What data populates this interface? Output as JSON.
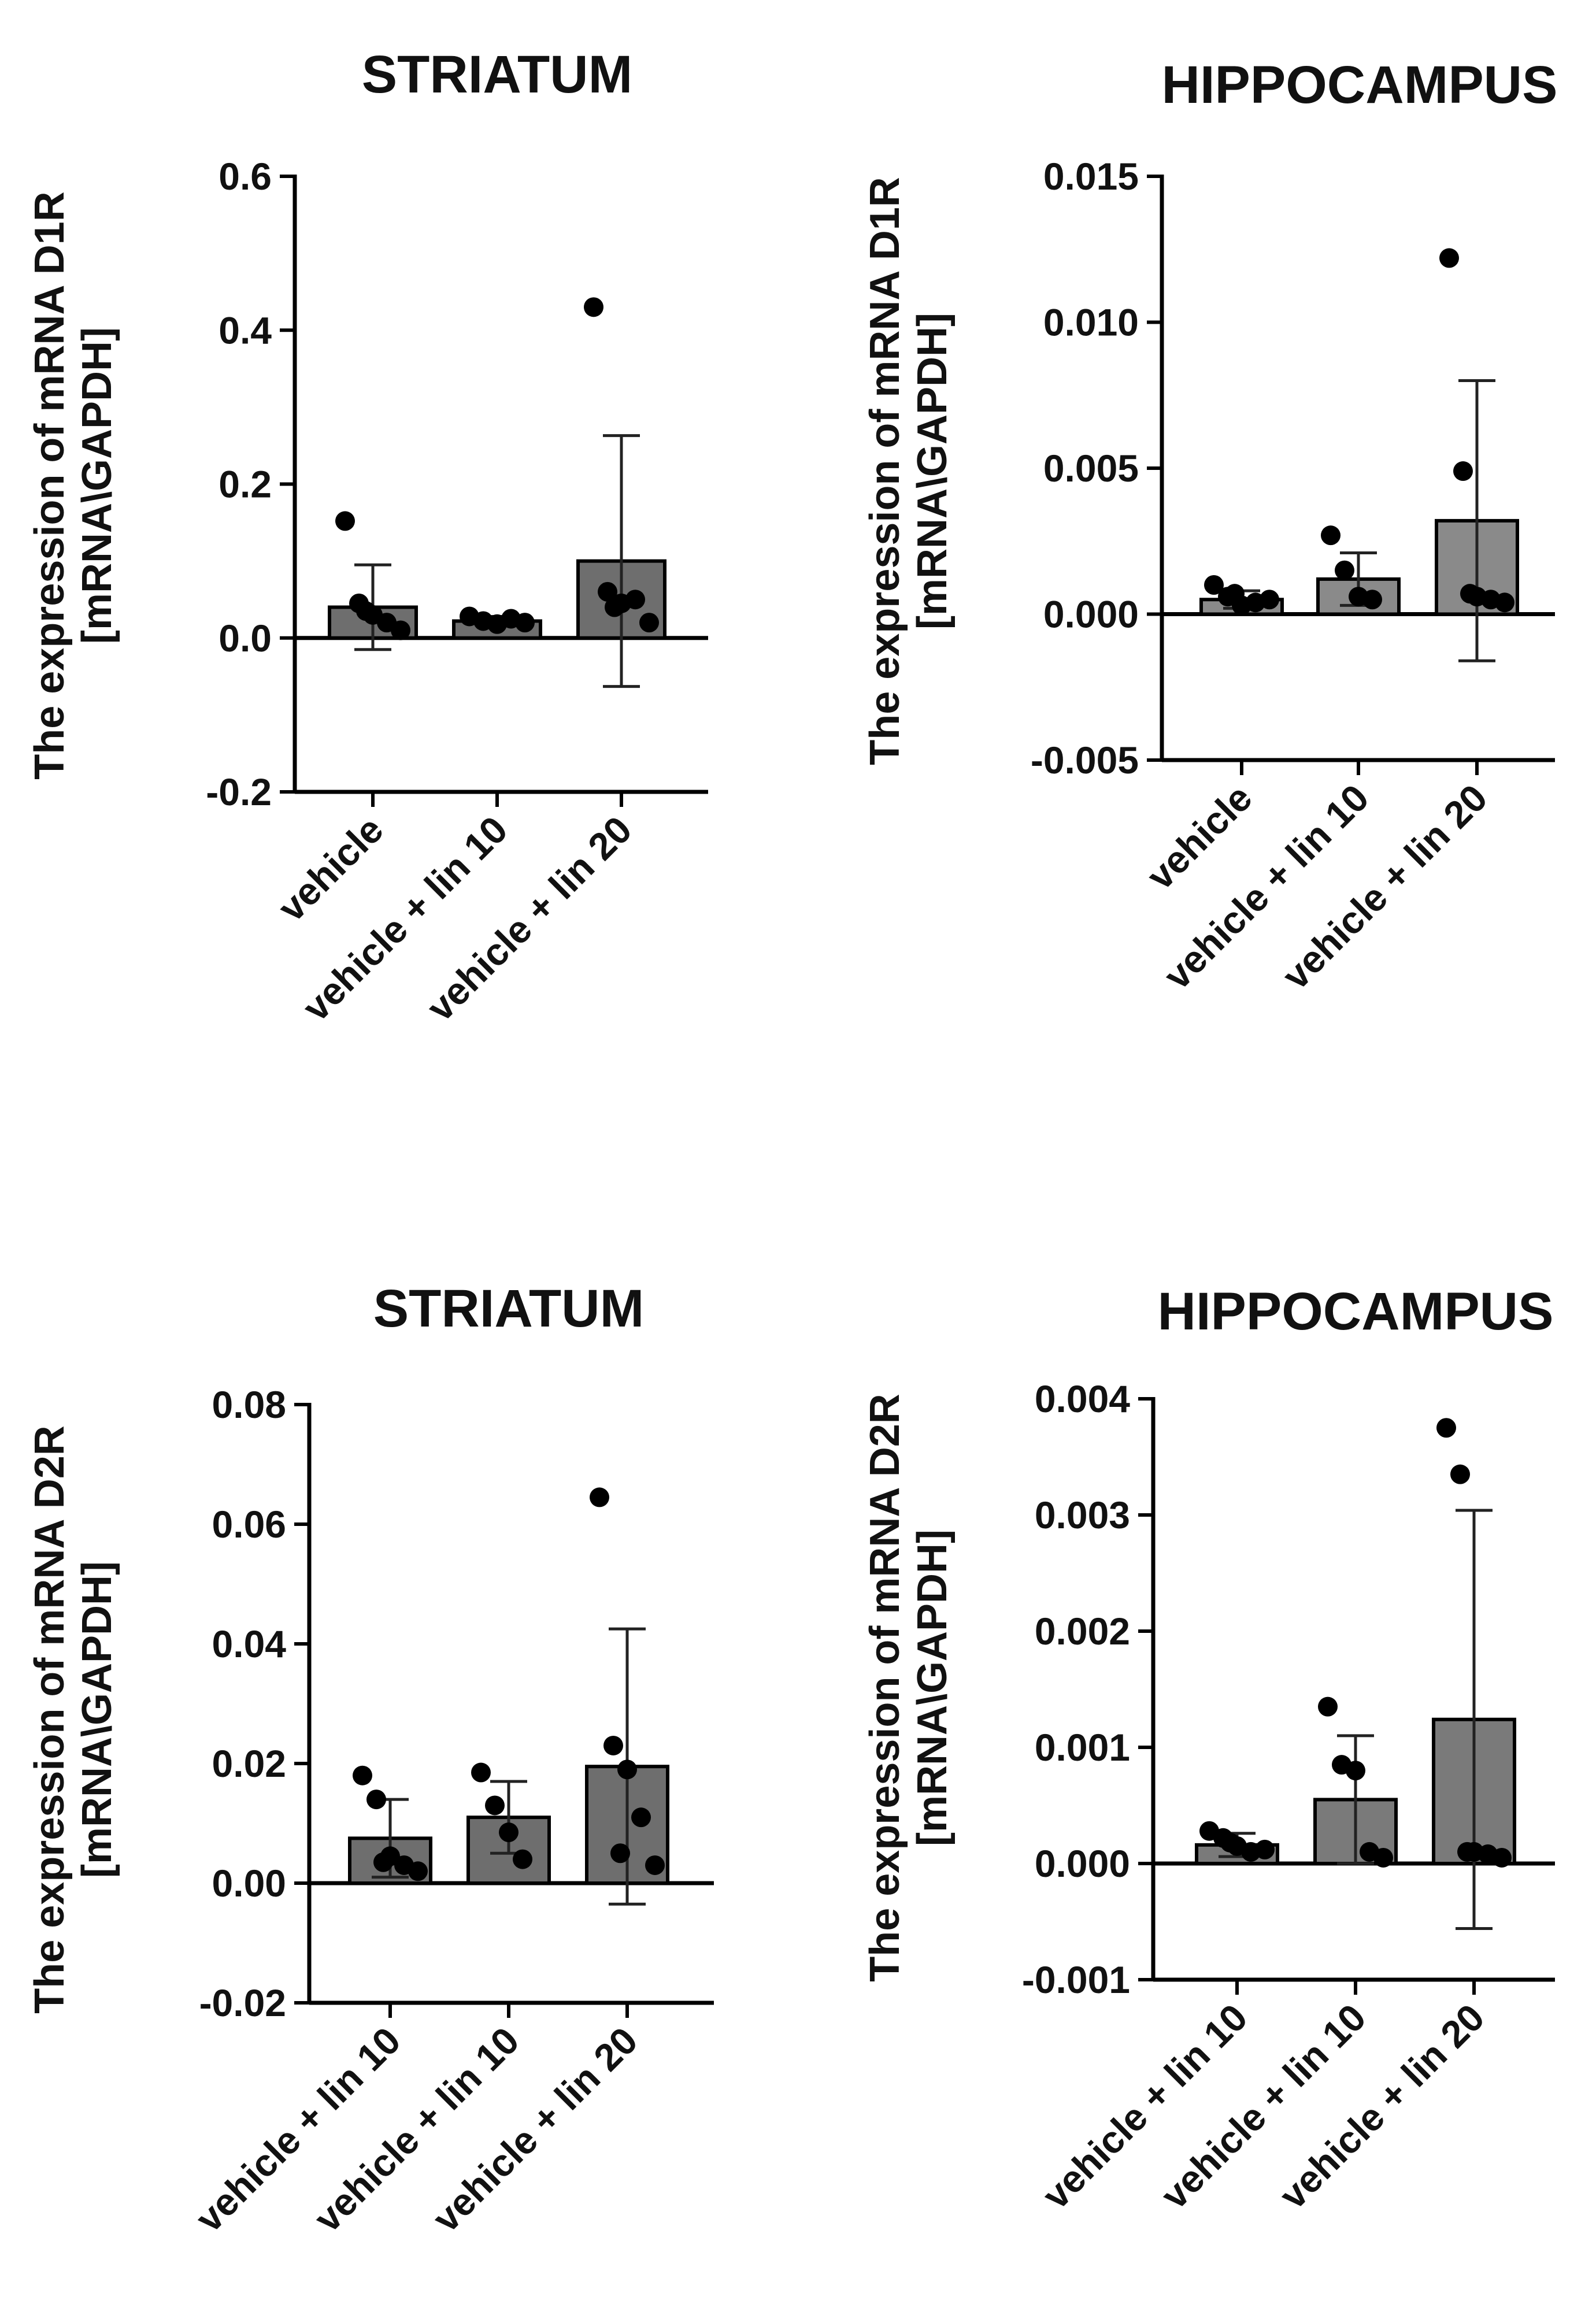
{
  "chart_data": [
    {
      "type": "bar",
      "title": "STRIATUM",
      "ylabel": [
        "The expression of mRNA D1R",
        "[mRNA\\GAPDH]"
      ],
      "ylim": [
        -0.2,
        0.6
      ],
      "yticks": [
        "0.6",
        "0.4",
        "0.2",
        "0.0",
        "-0.2"
      ],
      "ytick_values": [
        0.6,
        0.4,
        0.2,
        0.0,
        -0.2
      ],
      "categories": [
        "vehicle",
        "vehicle + lin 10",
        "vehicle + lin 20"
      ],
      "values": [
        0.04,
        0.022,
        0.1
      ],
      "errors": [
        0.055,
        0.006,
        0.163
      ],
      "points": [
        [
          0.152,
          0.045,
          0.03,
          0.02,
          0.01,
          0.035
        ],
        [
          0.028,
          0.022,
          0.018,
          0.025,
          0.02
        ],
        [
          0.43,
          0.06,
          0.045,
          0.05,
          0.02,
          0.04
        ]
      ],
      "bar_color": "#6e6e6e"
    },
    {
      "type": "bar",
      "title": "HIPPOCAMPUS",
      "ylabel": [
        "The expression of mRNA D1R",
        "[mRNA\\GAPDH]"
      ],
      "ylim": [
        -0.005,
        0.015
      ],
      "yticks": [
        "0.015",
        "0.010",
        "0.005",
        "0.000",
        "-0.005"
      ],
      "ytick_values": [
        0.015,
        0.01,
        0.005,
        0.0,
        -0.005
      ],
      "categories": [
        "vehicle",
        "vehicle + lin 10",
        "vehicle + lin 20"
      ],
      "values": [
        0.0005,
        0.0012,
        0.0032
      ],
      "errors": [
        0.0003,
        0.0009,
        0.0048
      ],
      "points": [
        [
          0.001,
          0.0006,
          0.0003,
          0.0004,
          0.0005,
          0.0007
        ],
        [
          0.0027,
          0.0015,
          0.0006,
          0.0005
        ],
        [
          0.0122,
          0.0049,
          0.0006,
          0.0005,
          0.0004,
          0.0007
        ]
      ],
      "bar_color": "#8a8a8a"
    },
    {
      "type": "bar",
      "title": "STRIATUM",
      "ylabel": [
        "The expression of mRNA D2R",
        "[mRNA\\GAPDH]"
      ],
      "ylim": [
        -0.02,
        0.08
      ],
      "yticks": [
        "0.08",
        "0.06",
        "0.04",
        "0.02",
        "0.00",
        "-0.02"
      ],
      "ytick_values": [
        0.08,
        0.06,
        0.04,
        0.02,
        0.0,
        -0.02
      ],
      "categories": [
        "vehicle + lin 10",
        "vehicle + lin 10",
        "vehicle + lin 20"
      ],
      "values": [
        0.0075,
        0.011,
        0.0195
      ],
      "errors": [
        0.0065,
        0.006,
        0.023
      ],
      "points": [
        [
          0.018,
          0.014,
          0.0045,
          0.003,
          0.002,
          0.0035
        ],
        [
          0.0185,
          0.013,
          0.0085,
          0.004
        ],
        [
          0.0645,
          0.023,
          0.019,
          0.011,
          0.003,
          0.005
        ]
      ],
      "bar_color": "#6e6e6e"
    },
    {
      "type": "bar",
      "title": "HIPPOCAMPUS",
      "ylabel": [
        "The expression of mRNA D2R",
        "[mRNA\\GAPDH]"
      ],
      "ylim": [
        -0.001,
        0.004
      ],
      "yticks": [
        "0.004",
        "0.003",
        "0.002",
        "0.001",
        "0.000",
        "-0.001"
      ],
      "ytick_values": [
        0.004,
        0.003,
        0.002,
        0.001,
        0.0,
        -0.001
      ],
      "categories": [
        "vehicle + lin 10",
        "vehicle + lin 10",
        "vehicle + lin 20"
      ],
      "values": [
        0.00016,
        0.00055,
        0.00124
      ],
      "errors": [
        0.0001,
        0.00055,
        0.0018
      ],
      "points": [
        [
          0.00028,
          0.00022,
          0.00015,
          0.0001,
          0.00012,
          0.00018
        ],
        [
          0.00135,
          0.00085,
          0.0008,
          0.0001,
          5e-05
        ],
        [
          0.00375,
          0.00335,
          0.0001,
          8e-05,
          5e-05,
          0.0001
        ]
      ],
      "bar_color": "#7a7a7a"
    }
  ]
}
